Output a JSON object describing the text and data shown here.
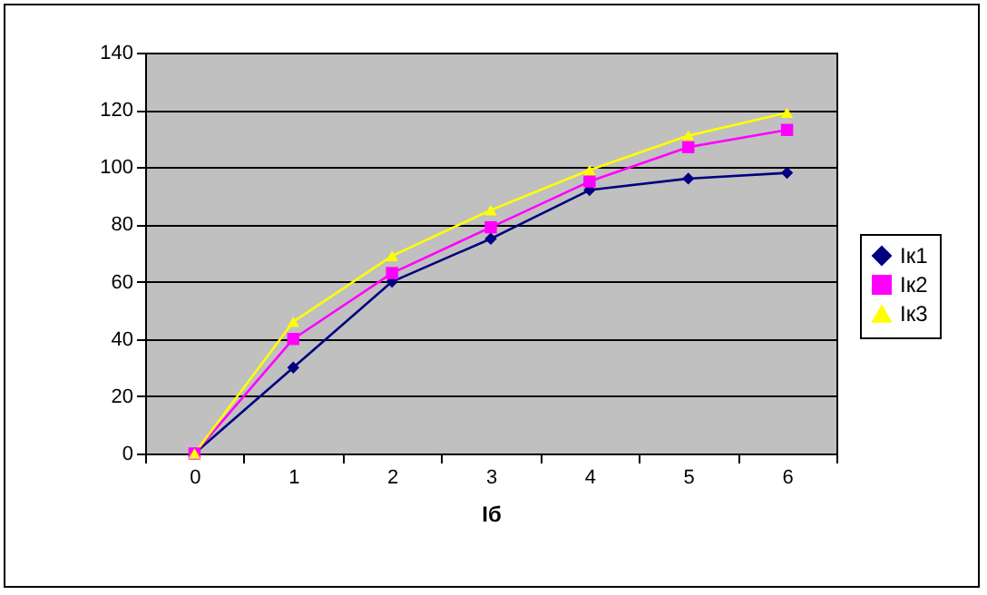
{
  "chart_data": {
    "type": "line",
    "xlabel": "Iб",
    "categories": [
      "0",
      "1",
      "2",
      "3",
      "4",
      "5",
      "6"
    ],
    "series": [
      {
        "name": "Iк1",
        "color": "#000080",
        "marker": "diamond",
        "values": [
          0,
          30,
          60,
          75,
          92,
          96,
          98
        ]
      },
      {
        "name": "Iк2",
        "color": "#ff00ff",
        "marker": "square",
        "values": [
          0,
          40,
          63,
          79,
          95,
          107,
          113
        ]
      },
      {
        "name": "Iк3",
        "color": "#ffff00",
        "marker": "triangle",
        "values": [
          0,
          46,
          69,
          85,
          99,
          111,
          119
        ]
      }
    ],
    "ylim": [
      0,
      140
    ],
    "yticks": [
      0,
      20,
      40,
      60,
      80,
      100,
      120,
      140
    ],
    "grid": "y",
    "legend": "right"
  }
}
